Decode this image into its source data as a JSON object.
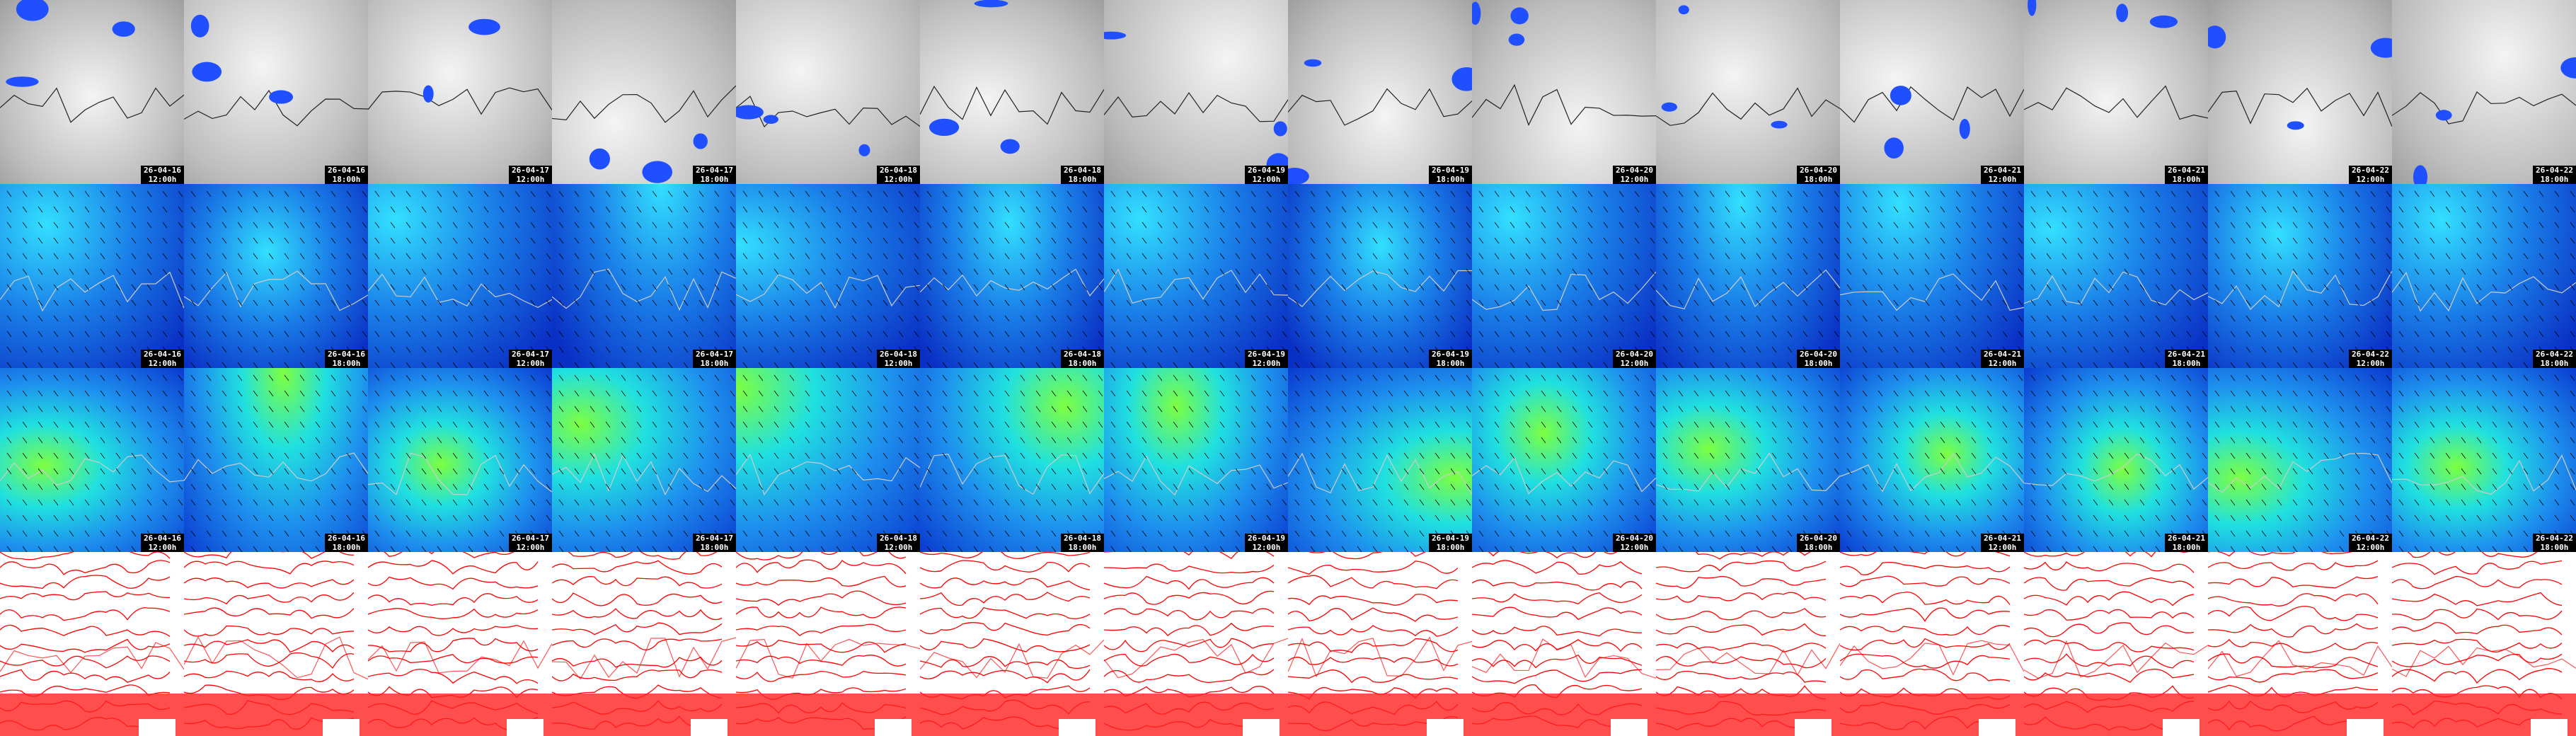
{
  "frames": [
    {
      "date": "26-04-16",
      "time": "12:00h"
    },
    {
      "date": "26-04-16",
      "time": "18:00h"
    },
    {
      "date": "26-04-17",
      "time": "12:00h"
    },
    {
      "date": "26-04-17",
      "time": "18:00h"
    },
    {
      "date": "26-04-18",
      "time": "12:00h"
    },
    {
      "date": "26-04-18",
      "time": "18:00h"
    },
    {
      "date": "26-04-19",
      "time": "12:00h"
    },
    {
      "date": "26-04-19",
      "time": "18:00h"
    },
    {
      "date": "26-04-20",
      "time": "12:00h"
    },
    {
      "date": "26-04-20",
      "time": "18:00h"
    },
    {
      "date": "26-04-21",
      "time": "12:00h"
    },
    {
      "date": "26-04-21",
      "time": "18:00h"
    },
    {
      "date": "26-04-22",
      "time": "12:00h"
    },
    {
      "date": "26-04-22",
      "time": "18:00h"
    }
  ]
}
